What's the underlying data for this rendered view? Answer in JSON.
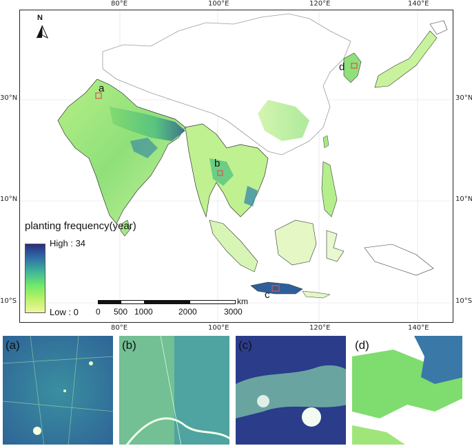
{
  "graticule": {
    "top": [
      "80°E",
      "100°E",
      "120°E",
      "140°E"
    ],
    "bottom": [
      "80°E",
      "100°E",
      "120°E",
      "140°E"
    ],
    "left": [
      "30°N",
      "10°N",
      "10°S"
    ],
    "right": [
      "30°N",
      "10°N",
      "10°S"
    ]
  },
  "north_arrow": {
    "label": "N"
  },
  "sites": {
    "a": "a",
    "b": "b",
    "c": "c",
    "d": "d"
  },
  "legend": {
    "title": "planting frequency(year)",
    "high": "High : 34",
    "low": "Low : 0",
    "colors": [
      "#2e2d7f",
      "#2f6fa6",
      "#3fb59a",
      "#6fe86a",
      "#b8f266",
      "#f1f5a0"
    ]
  },
  "scale_bar": {
    "ticks": [
      "0",
      "500",
      "1000",
      "2000",
      "3000"
    ],
    "unit": "km"
  },
  "panels": [
    {
      "label": "(a)"
    },
    {
      "label": "(b)"
    },
    {
      "label": "(c)"
    },
    {
      "label": "(d)"
    }
  ]
}
